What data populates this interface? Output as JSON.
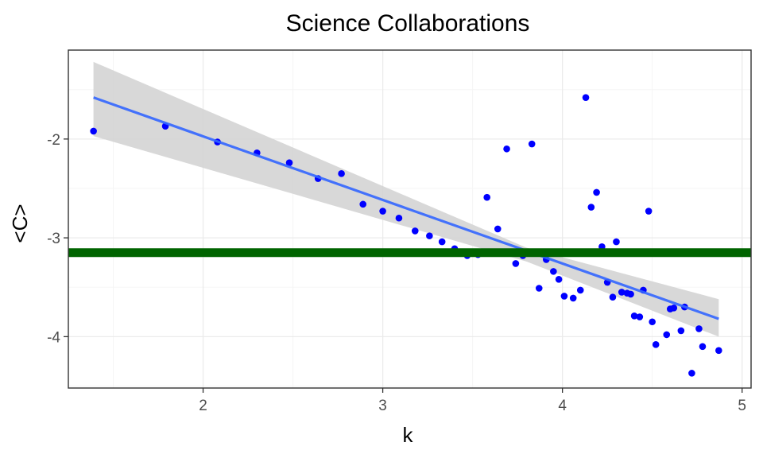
{
  "chart_data": {
    "type": "scatter",
    "title": "Science Collaborations",
    "xlabel": "k",
    "ylabel": "<C>",
    "xlim": [
      1.25,
      5.05
    ],
    "ylim": [
      -4.52,
      -1.1
    ],
    "x_ticks": [
      2,
      3,
      4,
      5
    ],
    "y_ticks": [
      -2,
      -3,
      -4
    ],
    "x_tick_labels": [
      "2",
      "3",
      "4",
      "5"
    ],
    "y_tick_labels": [
      "-2",
      "-3",
      "-4"
    ],
    "grid": true,
    "legend": "none",
    "points": [
      {
        "x": 1.39,
        "y": -1.92
      },
      {
        "x": 1.79,
        "y": -1.87
      },
      {
        "x": 2.08,
        "y": -2.03
      },
      {
        "x": 2.3,
        "y": -2.14
      },
      {
        "x": 2.48,
        "y": -2.24
      },
      {
        "x": 2.64,
        "y": -2.4
      },
      {
        "x": 2.77,
        "y": -2.35
      },
      {
        "x": 2.89,
        "y": -2.66
      },
      {
        "x": 3.0,
        "y": -2.73
      },
      {
        "x": 3.09,
        "y": -2.8
      },
      {
        "x": 3.18,
        "y": -2.93
      },
      {
        "x": 3.26,
        "y": -2.98
      },
      {
        "x": 3.33,
        "y": -3.04
      },
      {
        "x": 3.4,
        "y": -3.11
      },
      {
        "x": 3.47,
        "y": -3.18
      },
      {
        "x": 3.53,
        "y": -3.17
      },
      {
        "x": 3.58,
        "y": -2.59
      },
      {
        "x": 3.64,
        "y": -2.91
      },
      {
        "x": 3.69,
        "y": -2.1
      },
      {
        "x": 3.74,
        "y": -3.26
      },
      {
        "x": 3.78,
        "y": -3.18
      },
      {
        "x": 3.83,
        "y": -2.05
      },
      {
        "x": 3.87,
        "y": -3.51
      },
      {
        "x": 3.91,
        "y": -3.22
      },
      {
        "x": 3.95,
        "y": -3.34
      },
      {
        "x": 3.98,
        "y": -3.42
      },
      {
        "x": 4.01,
        "y": -3.59
      },
      {
        "x": 4.06,
        "y": -3.61
      },
      {
        "x": 4.1,
        "y": -3.53
      },
      {
        "x": 4.13,
        "y": -1.58
      },
      {
        "x": 4.16,
        "y": -2.69
      },
      {
        "x": 4.19,
        "y": -2.54
      },
      {
        "x": 4.22,
        "y": -3.09
      },
      {
        "x": 4.25,
        "y": -3.45
      },
      {
        "x": 4.28,
        "y": -3.6
      },
      {
        "x": 4.3,
        "y": -3.04
      },
      {
        "x": 4.33,
        "y": -3.55
      },
      {
        "x": 4.36,
        "y": -3.56
      },
      {
        "x": 4.38,
        "y": -3.57
      },
      {
        "x": 4.4,
        "y": -3.79
      },
      {
        "x": 4.43,
        "y": -3.8
      },
      {
        "x": 4.45,
        "y": -3.53
      },
      {
        "x": 4.48,
        "y": -2.73
      },
      {
        "x": 4.5,
        "y": -3.85
      },
      {
        "x": 4.52,
        "y": -4.08
      },
      {
        "x": 4.58,
        "y": -3.98
      },
      {
        "x": 4.6,
        "y": -3.72
      },
      {
        "x": 4.62,
        "y": -3.71
      },
      {
        "x": 4.66,
        "y": -3.94
      },
      {
        "x": 4.68,
        "y": -3.7
      },
      {
        "x": 4.72,
        "y": -4.37
      },
      {
        "x": 4.76,
        "y": -3.92
      },
      {
        "x": 4.78,
        "y": -4.1
      },
      {
        "x": 4.87,
        "y": -4.14
      }
    ],
    "regression_line": {
      "x": [
        1.39,
        4.87
      ],
      "y": [
        -1.58,
        -3.82
      ]
    },
    "confidence_band": {
      "x": [
        1.39,
        3.8,
        4.87
      ],
      "upper": [
        -1.22,
        -3.1,
        -3.62
      ],
      "lower": [
        -1.97,
        -3.24,
        -4.0
      ]
    },
    "reference_line": {
      "y": -3.15
    },
    "colors": {
      "points": "#0000ff",
      "regression": "#3366ff",
      "band": "#d4d4d4",
      "reference": "#006400",
      "grid_major": "#ebebeb",
      "grid_minor": "#f5f5f5",
      "panel_border": "#333333"
    }
  }
}
